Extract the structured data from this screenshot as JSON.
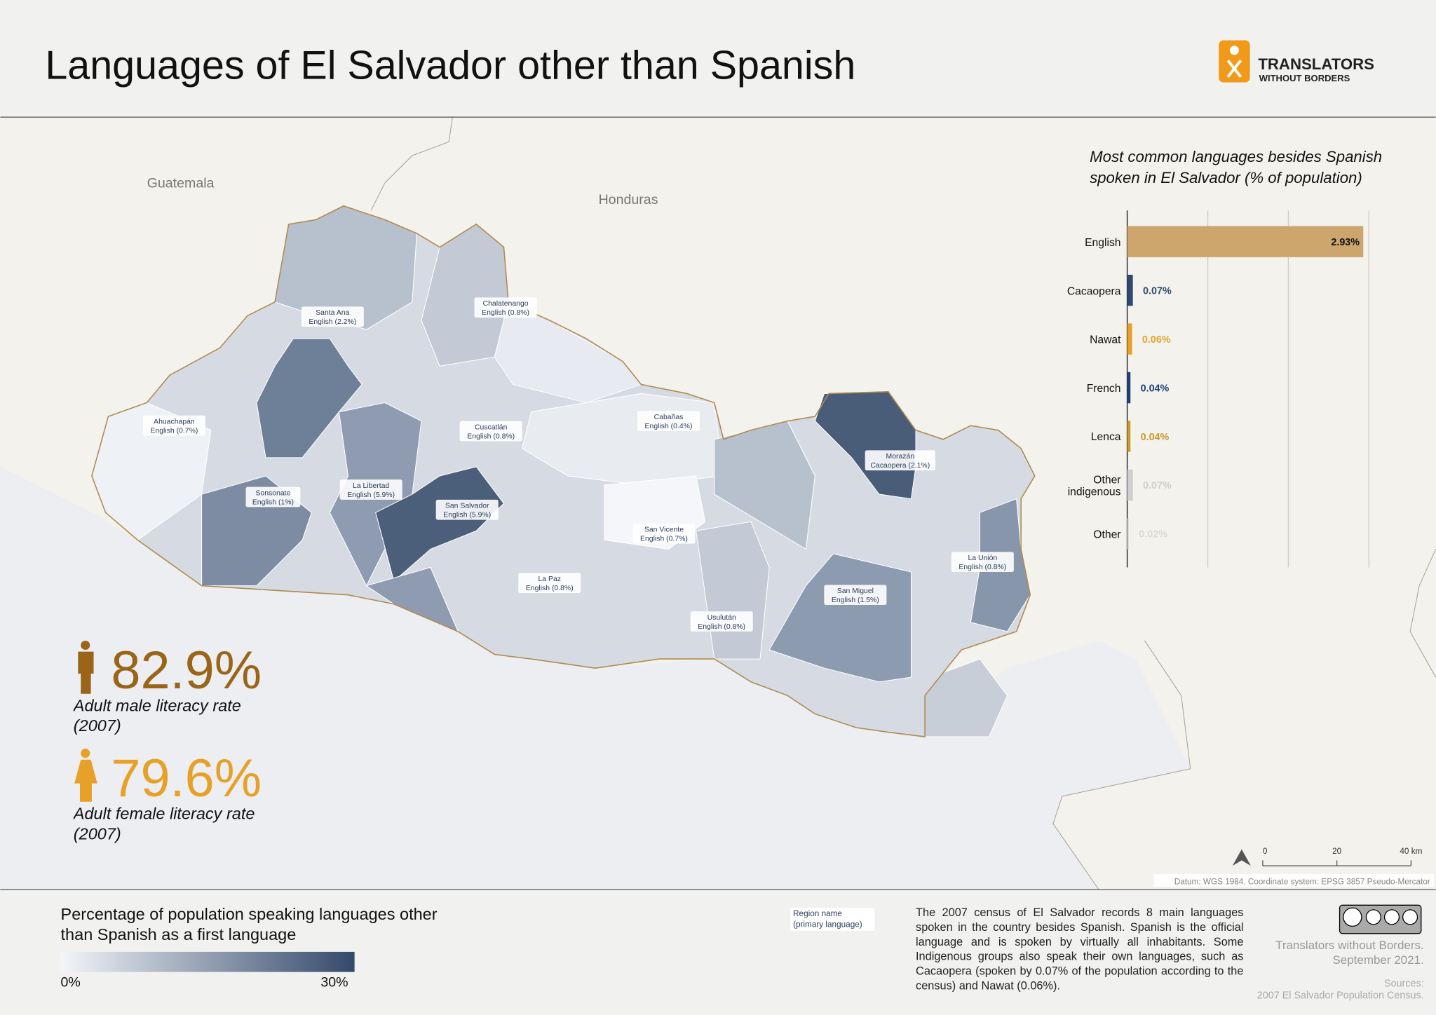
{
  "header": {
    "title": "Languages of El Salvador other than Spanish",
    "logo_line1": "TRANSLATORS",
    "logo_line2": "WITHOUT BORDERS"
  },
  "map": {
    "countries": [
      "Guatemala",
      "Honduras"
    ],
    "departments": [
      {
        "name": "Santa Ana",
        "language": "English (2.2%)"
      },
      {
        "name": "Chalatenango",
        "language": "English (0.8%)"
      },
      {
        "name": "Ahuachapán",
        "language": "English (0.7%)"
      },
      {
        "name": "Cuscatlán",
        "language": "English (0.8%)"
      },
      {
        "name": "Cabañas",
        "language": "English (0.4%)"
      },
      {
        "name": "Morazán",
        "language": "Cacaopera (2.1%)"
      },
      {
        "name": "La Libertad",
        "language": "English (5.9%)"
      },
      {
        "name": "Sonsonate",
        "language": "English (1%)"
      },
      {
        "name": "San Salvador",
        "language": "English (5.9%)"
      },
      {
        "name": "San Vicente",
        "language": "English (0.7%)"
      },
      {
        "name": "La Paz",
        "language": "English (0.8%)"
      },
      {
        "name": "La Unión",
        "language": "English (0.8%)"
      },
      {
        "name": "San Miguel",
        "language": "English (1.5%)"
      },
      {
        "name": "Usulután",
        "language": "English (0.8%)"
      }
    ],
    "scale_bar": {
      "ticks": [
        0,
        20,
        {
          "value": 40,
          "label": "40 km"
        }
      ]
    },
    "datum": "Datum: WGS 1984. Coordinate system: EPSG 3857 Pseudo-Mercator"
  },
  "chart_data": {
    "type": "bar",
    "orientation": "horizontal",
    "title": "Most common languages besides Spanish spoken in El Salvador (% of population)",
    "categories": [
      "English",
      "Cacaopera",
      "Nawat",
      "French",
      "Lenca",
      "Other indigenous",
      "Other"
    ],
    "values": [
      2.93,
      0.07,
      0.06,
      0.04,
      0.04,
      0.07,
      0.02
    ],
    "value_labels": [
      "2.93%",
      "0.07%",
      "0.06%",
      "0.04%",
      "0.04%",
      "0.07%",
      "0.02%"
    ],
    "colors": [
      "#cda66e",
      "#2f4a6e",
      "#e8a128",
      "#1f3f7a",
      "#c99a2b",
      "#cfcfcf",
      "#dadada"
    ],
    "xlim": [
      0,
      3
    ],
    "xticks": [
      0,
      1,
      2,
      3
    ],
    "grid": true
  },
  "literacy": [
    {
      "value": "82.9%",
      "label": "Adult male literacy rate (2007)",
      "color": "#9a6518"
    },
    {
      "value": "79.6%",
      "label": "Adult female literacy rate (2007)",
      "color": "#e8a128"
    }
  ],
  "legend": {
    "title": "Percentage of population speaking languages other than Spanish as a first language",
    "min_label": "0%",
    "max_label": "30%",
    "sample_name": "Region name",
    "sample_language": "(primary language)"
  },
  "description": "The 2007 census of El Salvador records 8 main languages spoken in the country besides Spanish. Spanish is the official language and is spoken by virtually all inhabitants. Some Indigenous groups also speak their own languages, such as Cacaopera (spoken by 0.07% of the population according to the census) and Nawat (0.06%).",
  "credits": {
    "org": "Translators without Borders.",
    "date": "September 2021.",
    "sources_label": "Sources:",
    "sources": "2007 El Salvador Population Census."
  }
}
